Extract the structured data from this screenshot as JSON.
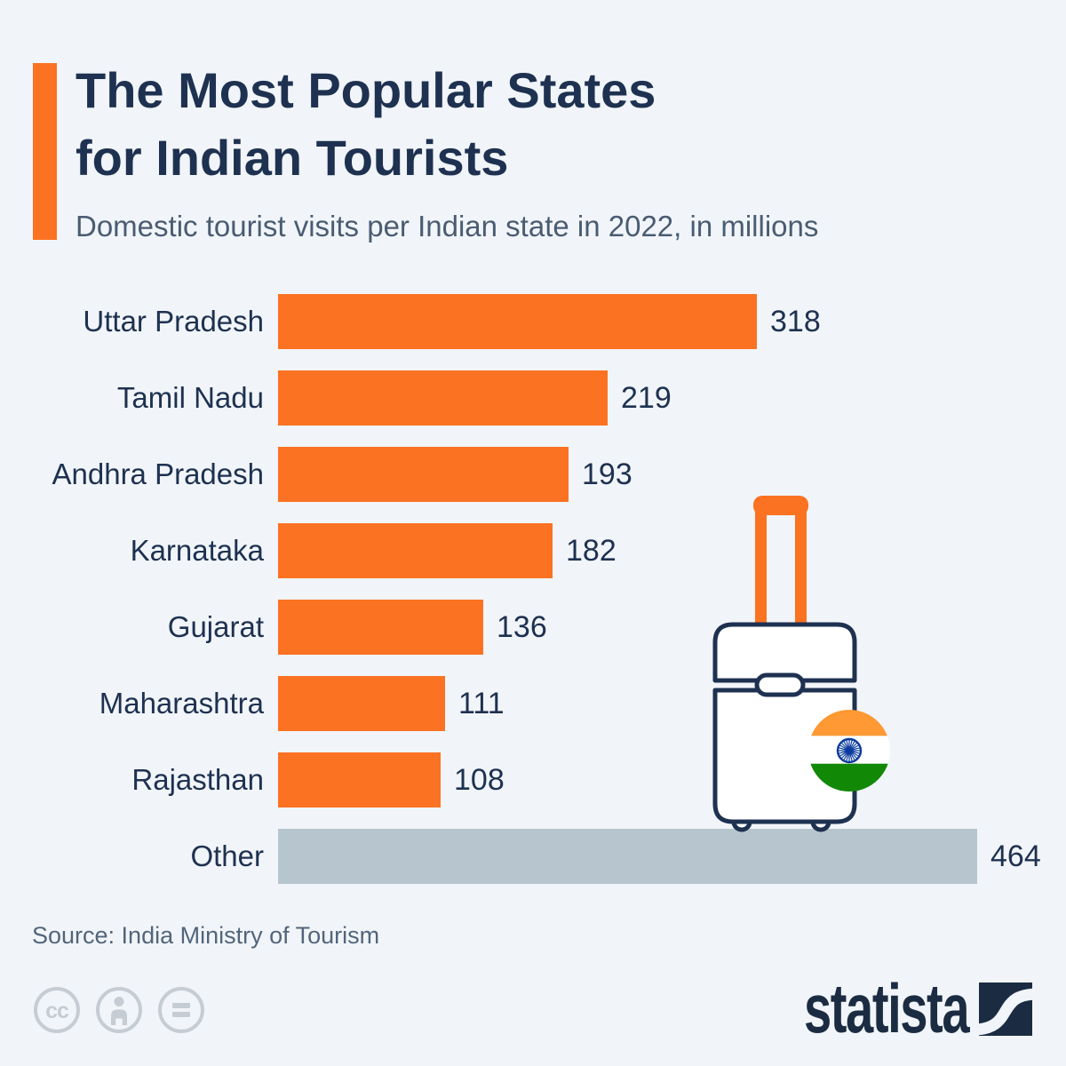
{
  "header": {
    "title_line1": "The Most Popular States",
    "title_line2": "for Indian Tourists",
    "subtitle": "Domestic tourist visits per Indian state in 2022, in millions"
  },
  "chart_data": {
    "type": "bar",
    "orientation": "horizontal",
    "title": "The Most Popular States for Indian Tourists",
    "subtitle": "Domestic tourist visits per Indian state in 2022, in millions",
    "categories": [
      "Uttar Pradesh",
      "Tamil Nadu",
      "Andhra Pradesh",
      "Karnataka",
      "Gujarat",
      "Maharashtra",
      "Rajasthan",
      "Other"
    ],
    "values": [
      318,
      219,
      193,
      182,
      136,
      111,
      108,
      464
    ],
    "colors": [
      "#FB7222",
      "#FB7222",
      "#FB7222",
      "#FB7222",
      "#FB7222",
      "#FB7222",
      "#FB7222",
      "#B7C6CE"
    ],
    "unit": "millions",
    "value_axis_max": 464,
    "grid": false,
    "legend": false,
    "value_labels": "outside-end"
  },
  "illustration": {
    "name": "rolling-suitcase-with-india-flag-badge",
    "outline_color": "#1E3150",
    "handle_color": "#FB7222",
    "flag_colors": {
      "saffron": "#FF9933",
      "white": "#FFFFFF",
      "green": "#128807",
      "chakra": "#0B3B9E"
    }
  },
  "footer": {
    "source": "Source: India Ministry of Tourism",
    "license_icons": [
      "cc",
      "attribution",
      "equals"
    ],
    "cc_label": "cc",
    "brand": "statista"
  },
  "theme": {
    "background": "#F1F5F9",
    "accent_orange": "#FB7222",
    "other_bar_gray": "#B7C6CE",
    "text_navy": "#1E3150",
    "subtitle_gray": "#4A5C72",
    "source_gray": "#52657B",
    "icon_gray": "#C6CCD3",
    "brand_navy": "#1B2C42"
  }
}
